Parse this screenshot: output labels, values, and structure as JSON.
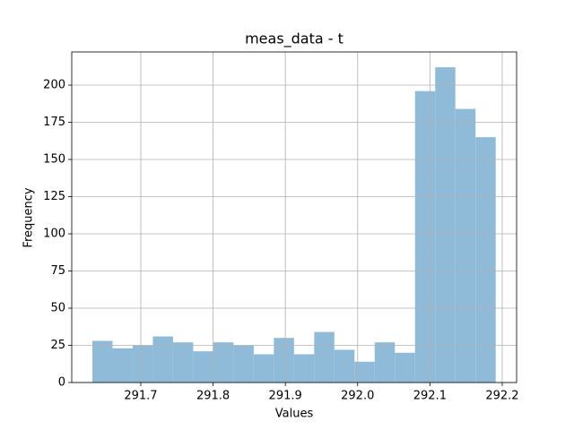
{
  "chart_data": {
    "type": "histogram",
    "title": "meas_data - t",
    "xlabel": "Values",
    "ylabel": "Frequency",
    "bins": [
      291.633,
      291.6609,
      291.6888,
      291.7167,
      291.7446,
      291.7725,
      291.8004,
      291.8283,
      291.8562,
      291.8841,
      291.912,
      291.9399,
      291.9678,
      291.9957,
      292.0236,
      292.0515,
      292.0794,
      292.1073,
      292.1352,
      292.1631,
      292.191
    ],
    "values": [
      28,
      23,
      25,
      31,
      27,
      21,
      27,
      25,
      19,
      30,
      19,
      34,
      22,
      14,
      27,
      20,
      196,
      212,
      184,
      165
    ],
    "color": "#8fbbd9",
    "xlim": [
      291.6045,
      292.2199
    ],
    "xticks": [
      291.7,
      291.8,
      291.9,
      {
        "value": 292.0,
        "label": "292.0"
      },
      292.1,
      292.2
    ],
    "ylim": [
      0,
      222.3
    ],
    "yticks": [
      0,
      25,
      50,
      75,
      100,
      125,
      150,
      175,
      200
    ],
    "grid": true
  }
}
